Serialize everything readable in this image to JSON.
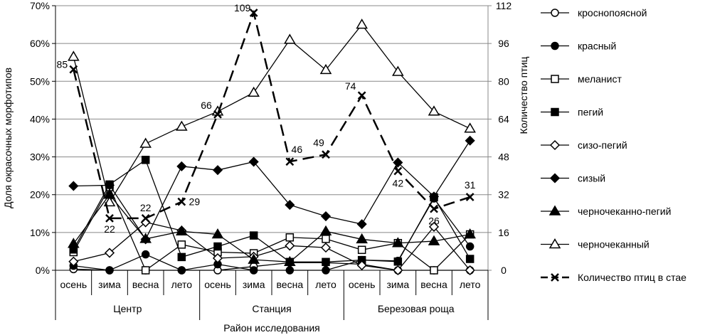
{
  "chart_data": {
    "type": "line",
    "xlabel": "Район исследования",
    "ylabel": "Доля окрасочных морфотипов",
    "y2label": "Количество птиц",
    "ylim": [
      0,
      70
    ],
    "yticks": [
      0,
      10,
      20,
      30,
      40,
      50,
      60,
      70
    ],
    "y2lim": [
      0,
      112
    ],
    "y2ticks": [
      0,
      16,
      32,
      48,
      64,
      80,
      96,
      112
    ],
    "groups": [
      "Центр",
      "Станция",
      "Березовая роща"
    ],
    "categories": [
      "осень",
      "зима",
      "весна",
      "лето",
      "осень",
      "зима",
      "весна",
      "лето",
      "осень",
      "зима",
      "весна",
      "лето"
    ],
    "series": [
      {
        "name": "кроснопоясной",
        "marker": "circle-open",
        "values": [
          0.3,
          0,
          0,
          0,
          0,
          1,
          2,
          2,
          1.6,
          0,
          0,
          0
        ]
      },
      {
        "name": "красный",
        "marker": "circle",
        "values": [
          1.2,
          0,
          4.2,
          0,
          1.6,
          0,
          0,
          0,
          2.7,
          2.5,
          19,
          6.3
        ]
      },
      {
        "name": "меланист",
        "marker": "square-open",
        "values": [
          4.8,
          22,
          0,
          6.8,
          4.8,
          4.5,
          8.7,
          8.3,
          5.4,
          7.2,
          0,
          9.5
        ]
      },
      {
        "name": "пегий",
        "marker": "square",
        "values": [
          5.5,
          22.7,
          29.2,
          3.5,
          6.3,
          9.2,
          2.2,
          2.2,
          2.7,
          2.3,
          19.3,
          3.0
        ]
      },
      {
        "name": "сизо-пегий",
        "marker": "diamond-open",
        "values": [
          2.3,
          4.6,
          12.7,
          10.5,
          3.2,
          3.6,
          6.5,
          6.0,
          1.3,
          0,
          11.5,
          0
        ]
      },
      {
        "name": "сизый",
        "marker": "diamond",
        "values": [
          22.3,
          22.5,
          8.2,
          27.5,
          26.5,
          28.7,
          17.3,
          14.3,
          12.2,
          28.5,
          19.5,
          34.3
        ]
      },
      {
        "name": "черночеканно-пегий",
        "marker": "triangle",
        "values": [
          7,
          20,
          8.3,
          10.3,
          9.5,
          2.8,
          2.2,
          10.3,
          8.2,
          7.2,
          7.7,
          9.5
        ]
      },
      {
        "name": "черночеканный",
        "marker": "triangle-open",
        "values": [
          56.5,
          18,
          33.5,
          38,
          42,
          47,
          61,
          53,
          65,
          52.5,
          42,
          37.5
        ]
      },
      {
        "name": "Количество птиц в стае",
        "marker": "x",
        "axis": "right",
        "dashed": true,
        "values": [
          85,
          22,
          22,
          29,
          66,
          109,
          46,
          49,
          74,
          42,
          26,
          31
        ]
      }
    ],
    "legend": "right"
  }
}
